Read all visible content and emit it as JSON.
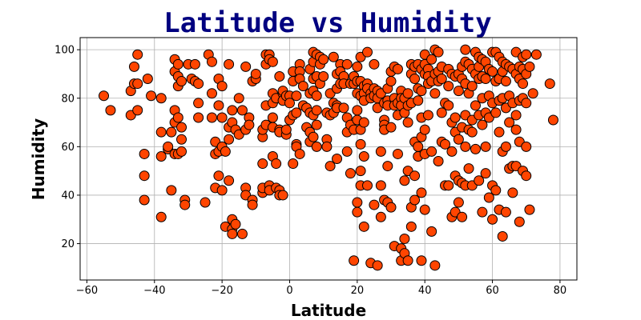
{
  "colors": {
    "title": "#000080",
    "marker_fill": "#ff4500",
    "marker_edge": "#000000",
    "grid": "#b0b0b0"
  },
  "chart_data": {
    "type": "scatter",
    "title": "Latitude vs Humidity",
    "xlabel": "Latitude",
    "ylabel": "Humidity",
    "xlim": [
      -62,
      85
    ],
    "ylim": [
      5,
      105
    ],
    "xticks": [
      -60,
      -40,
      -20,
      0,
      20,
      40,
      60,
      80
    ],
    "yticks": [
      20,
      40,
      60,
      80,
      100
    ],
    "xtick_labels": [
      "−60",
      "−40",
      "−20",
      "0",
      "20",
      "40",
      "60",
      "80"
    ],
    "ytick_labels": [
      "20",
      "40",
      "60",
      "80",
      "100"
    ],
    "grid": true,
    "points": [
      [
        -55,
        81
      ],
      [
        -53,
        75
      ],
      [
        -47,
        73
      ],
      [
        -47,
        83
      ],
      [
        -46,
        93
      ],
      [
        -46,
        86
      ],
      [
        -45,
        98
      ],
      [
        -45,
        86
      ],
      [
        -45,
        75
      ],
      [
        -42,
        88
      ],
      [
        -41,
        81
      ],
      [
        -43,
        57
      ],
      [
        -43,
        48
      ],
      [
        -43,
        38
      ],
      [
        -38,
        80
      ],
      [
        -38,
        66
      ],
      [
        -38,
        56
      ],
      [
        -38,
        31
      ],
      [
        -36,
        59
      ],
      [
        -36,
        60
      ],
      [
        -35,
        42
      ],
      [
        -35,
        66
      ],
      [
        -34,
        57
      ],
      [
        -34,
        96
      ],
      [
        -34,
        91
      ],
      [
        -34,
        75
      ],
      [
        -34,
        70
      ],
      [
        -33,
        94
      ],
      [
        -33,
        89
      ],
      [
        -33,
        85
      ],
      [
        -33,
        72
      ],
      [
        -33,
        57
      ],
      [
        -32,
        87
      ],
      [
        -32,
        63
      ],
      [
        -32,
        58
      ],
      [
        -32,
        68
      ],
      [
        -31,
        38
      ],
      [
        -31,
        36
      ],
      [
        -30,
        94
      ],
      [
        -29,
        88
      ],
      [
        -28,
        94
      ],
      [
        -28,
        87
      ],
      [
        -27,
        86
      ],
      [
        -27,
        72
      ],
      [
        -27,
        78
      ],
      [
        -25,
        37
      ],
      [
        -24,
        98
      ],
      [
        -23,
        82
      ],
      [
        -23,
        72
      ],
      [
        -23,
        95
      ],
      [
        -22,
        62
      ],
      [
        -22,
        57
      ],
      [
        -22,
        43
      ],
      [
        -21,
        88
      ],
      [
        -21,
        58
      ],
      [
        -21,
        48
      ],
      [
        -21,
        77
      ],
      [
        -20,
        85
      ],
      [
        -20,
        42
      ],
      [
        -20,
        72
      ],
      [
        -20,
        60
      ],
      [
        -19,
        58
      ],
      [
        -19,
        27
      ],
      [
        -18,
        94
      ],
      [
        -18,
        63
      ],
      [
        -18,
        46
      ],
      [
        -18,
        68
      ],
      [
        -17,
        75
      ],
      [
        -17,
        70
      ],
      [
        -17,
        26
      ],
      [
        -17,
        30
      ],
      [
        -17,
        24
      ],
      [
        -16,
        67
      ],
      [
        -16,
        28
      ],
      [
        -15,
        80
      ],
      [
        -15,
        65
      ],
      [
        -14,
        24
      ],
      [
        -14,
        75
      ],
      [
        -13,
        93
      ],
      [
        -13,
        43
      ],
      [
        -13,
        40
      ],
      [
        -13,
        67
      ],
      [
        -12,
        72
      ],
      [
        -12,
        69
      ],
      [
        -11,
        87
      ],
      [
        -11,
        38
      ],
      [
        -11,
        36
      ],
      [
        -10,
        88
      ],
      [
        -10,
        90
      ],
      [
        -8,
        53
      ],
      [
        -8,
        41
      ],
      [
        -8,
        43
      ],
      [
        -8,
        64
      ],
      [
        -8,
        67
      ],
      [
        -7,
        94
      ],
      [
        -7,
        98
      ],
      [
        -7,
        77
      ],
      [
        -7,
        69
      ],
      [
        -6,
        98
      ],
      [
        -6,
        96
      ],
      [
        -6,
        44
      ],
      [
        -6,
        42
      ],
      [
        -5,
        95
      ],
      [
        -5,
        72
      ],
      [
        -5,
        82
      ],
      [
        -5,
        78
      ],
      [
        -5,
        68
      ],
      [
        -5,
        56
      ],
      [
        -4,
        80
      ],
      [
        -4,
        53
      ],
      [
        -4,
        43
      ],
      [
        -3,
        89
      ],
      [
        -3,
        67
      ],
      [
        -3,
        66
      ],
      [
        -3,
        42
      ],
      [
        -3,
        40
      ],
      [
        -2,
        82
      ],
      [
        -2,
        83
      ],
      [
        -2,
        79
      ],
      [
        -2,
        40
      ],
      [
        -1,
        81
      ],
      [
        -1,
        65
      ],
      [
        -1,
        67
      ],
      [
        0,
        81
      ],
      [
        0,
        78
      ],
      [
        0,
        71
      ],
      [
        1,
        91
      ],
      [
        1,
        87
      ],
      [
        1,
        73
      ],
      [
        1,
        53
      ],
      [
        2,
        81
      ],
      [
        2,
        74
      ],
      [
        2,
        61
      ],
      [
        2,
        60
      ],
      [
        3,
        94
      ],
      [
        3,
        91
      ],
      [
        3,
        88
      ],
      [
        3,
        57
      ],
      [
        4,
        85
      ],
      [
        4,
        77
      ],
      [
        5,
        76
      ],
      [
        5,
        68
      ],
      [
        6,
        92
      ],
      [
        6,
        82
      ],
      [
        6,
        74
      ],
      [
        6,
        66
      ],
      [
        6,
        62
      ],
      [
        7,
        99
      ],
      [
        7,
        95
      ],
      [
        7,
        88
      ],
      [
        7,
        83
      ],
      [
        7,
        73
      ],
      [
        7,
        64
      ],
      [
        8,
        98
      ],
      [
        8,
        89
      ],
      [
        8,
        81
      ],
      [
        8,
        75
      ],
      [
        8,
        69
      ],
      [
        8,
        60
      ],
      [
        9,
        97
      ],
      [
        9,
        94
      ],
      [
        9,
        86
      ],
      [
        10,
        96
      ],
      [
        10,
        89
      ],
      [
        11,
        74
      ],
      [
        11,
        63
      ],
      [
        11,
        60
      ],
      [
        12,
        82
      ],
      [
        12,
        73
      ],
      [
        12,
        52
      ],
      [
        13,
        97
      ],
      [
        13,
        78
      ],
      [
        13,
        74
      ],
      [
        14,
        90
      ],
      [
        14,
        84
      ],
      [
        14,
        77
      ],
      [
        14,
        76
      ],
      [
        14,
        55
      ],
      [
        15,
        94
      ],
      [
        15,
        91
      ],
      [
        15,
        86
      ],
      [
        16,
        89
      ],
      [
        16,
        86
      ],
      [
        16,
        76
      ],
      [
        17,
        94
      ],
      [
        17,
        72
      ],
      [
        17,
        66
      ],
      [
        17,
        58
      ],
      [
        18,
        86
      ],
      [
        18,
        69
      ],
      [
        18,
        49
      ],
      [
        19,
        86
      ],
      [
        19,
        13
      ],
      [
        19,
        67
      ],
      [
        19,
        89
      ],
      [
        20,
        93
      ],
      [
        20,
        87
      ],
      [
        20,
        82
      ],
      [
        20,
        75
      ],
      [
        20,
        71
      ],
      [
        20,
        37
      ],
      [
        20,
        33
      ],
      [
        21,
        97
      ],
      [
        21,
        87
      ],
      [
        21,
        81
      ],
      [
        21,
        67
      ],
      [
        21,
        61
      ],
      [
        21,
        50
      ],
      [
        21,
        44
      ],
      [
        22,
        85
      ],
      [
        22,
        82
      ],
      [
        22,
        79
      ],
      [
        22,
        70
      ],
      [
        22,
        56
      ],
      [
        22,
        27
      ],
      [
        23,
        99
      ],
      [
        23,
        86
      ],
      [
        23,
        84
      ],
      [
        23,
        44
      ],
      [
        24,
        82
      ],
      [
        24,
        80
      ],
      [
        24,
        12
      ],
      [
        25,
        94
      ],
      [
        25,
        84
      ],
      [
        25,
        81
      ],
      [
        25,
        36
      ],
      [
        26,
        83
      ],
      [
        26,
        80
      ],
      [
        26,
        76
      ],
      [
        26,
        11
      ],
      [
        27,
        82
      ],
      [
        27,
        58
      ],
      [
        27,
        44
      ],
      [
        27,
        31
      ],
      [
        28,
        78
      ],
      [
        28,
        71
      ],
      [
        28,
        69
      ],
      [
        28,
        67
      ],
      [
        28,
        38
      ],
      [
        29,
        84
      ],
      [
        29,
        79
      ],
      [
        29,
        77
      ],
      [
        29,
        52
      ],
      [
        29,
        37
      ],
      [
        30,
        91
      ],
      [
        30,
        87
      ],
      [
        30,
        68
      ],
      [
        30,
        35
      ],
      [
        31,
        93
      ],
      [
        31,
        80
      ],
      [
        31,
        77
      ],
      [
        31,
        19
      ],
      [
        32,
        92
      ],
      [
        32,
        78
      ],
      [
        32,
        73
      ],
      [
        32,
        57
      ],
      [
        33,
        83
      ],
      [
        33,
        80
      ],
      [
        33,
        77
      ],
      [
        33,
        18
      ],
      [
        33,
        13
      ],
      [
        34,
        80
      ],
      [
        34,
        74
      ],
      [
        34,
        46
      ],
      [
        34,
        22
      ],
      [
        34,
        16
      ],
      [
        35,
        82
      ],
      [
        35,
        77
      ],
      [
        35,
        70
      ],
      [
        35,
        50
      ],
      [
        35,
        13
      ],
      [
        36,
        94
      ],
      [
        36,
        90
      ],
      [
        36,
        78
      ],
      [
        36,
        35
      ],
      [
        36,
        27
      ],
      [
        37,
        93
      ],
      [
        37,
        88
      ],
      [
        37,
        62
      ],
      [
        37,
        48
      ],
      [
        37,
        38
      ],
      [
        38,
        94
      ],
      [
        38,
        84
      ],
      [
        38,
        79
      ],
      [
        38,
        60
      ],
      [
        38,
        56
      ],
      [
        39,
        92
      ],
      [
        39,
        83
      ],
      [
        39,
        72
      ],
      [
        39,
        64
      ],
      [
        39,
        41
      ],
      [
        39,
        13
      ],
      [
        40,
        98
      ],
      [
        40,
        94
      ],
      [
        40,
        90
      ],
      [
        40,
        67
      ],
      [
        40,
        57
      ],
      [
        40,
        34
      ],
      [
        41,
        92
      ],
      [
        41,
        89
      ],
      [
        41,
        86
      ],
      [
        41,
        73
      ],
      [
        42,
        96
      ],
      [
        42,
        87
      ],
      [
        42,
        58
      ],
      [
        42,
        25
      ],
      [
        43,
        100
      ],
      [
        43,
        90
      ],
      [
        43,
        82
      ],
      [
        43,
        11
      ],
      [
        44,
        99
      ],
      [
        44,
        91
      ],
      [
        44,
        87
      ],
      [
        44,
        54
      ],
      [
        45,
        93
      ],
      [
        45,
        88
      ],
      [
        45,
        74
      ],
      [
        45,
        62
      ],
      [
        46,
        78
      ],
      [
        46,
        61
      ],
      [
        46,
        44
      ],
      [
        47,
        92
      ],
      [
        47,
        85
      ],
      [
        47,
        77
      ],
      [
        47,
        44
      ],
      [
        48,
        90
      ],
      [
        48,
        70
      ],
      [
        48,
        58
      ],
      [
        48,
        31
      ],
      [
        49,
        89
      ],
      [
        49,
        72
      ],
      [
        49,
        66
      ],
      [
        49,
        48
      ],
      [
        49,
        33
      ],
      [
        50,
        90
      ],
      [
        50,
        83
      ],
      [
        50,
        63
      ],
      [
        50,
        46
      ],
      [
        50,
        37
      ],
      [
        51,
        93
      ],
      [
        51,
        88
      ],
      [
        51,
        68
      ],
      [
        51,
        45
      ],
      [
        51,
        31
      ],
      [
        52,
        100
      ],
      [
        52,
        95
      ],
      [
        52,
        86
      ],
      [
        52,
        73
      ],
      [
        52,
        60
      ],
      [
        52,
        44
      ],
      [
        53,
        94
      ],
      [
        53,
        82
      ],
      [
        53,
        67
      ],
      [
        53,
        51
      ],
      [
        54,
        92
      ],
      [
        54,
        85
      ],
      [
        54,
        71
      ],
      [
        54,
        66
      ],
      [
        54,
        44
      ],
      [
        55,
        99
      ],
      [
        55,
        90
      ],
      [
        55,
        77
      ],
      [
        55,
        59
      ],
      [
        56,
        97
      ],
      [
        56,
        93
      ],
      [
        56,
        88
      ],
      [
        56,
        73
      ],
      [
        56,
        46
      ],
      [
        57,
        96
      ],
      [
        57,
        89
      ],
      [
        57,
        80
      ],
      [
        57,
        69
      ],
      [
        57,
        33
      ],
      [
        58,
        95
      ],
      [
        58,
        88
      ],
      [
        58,
        74
      ],
      [
        58,
        60
      ],
      [
        58,
        49
      ],
      [
        59,
        92
      ],
      [
        59,
        81
      ],
      [
        59,
        72
      ],
      [
        59,
        39
      ],
      [
        60,
        99
      ],
      [
        60,
        91
      ],
      [
        60,
        78
      ],
      [
        60,
        44
      ],
      [
        60,
        30
      ],
      [
        61,
        99
      ],
      [
        61,
        87
      ],
      [
        61,
        74
      ],
      [
        61,
        42
      ],
      [
        62,
        97
      ],
      [
        62,
        88
      ],
      [
        62,
        79
      ],
      [
        62,
        66
      ],
      [
        62,
        34
      ],
      [
        63,
        95
      ],
      [
        63,
        91
      ],
      [
        63,
        80
      ],
      [
        63,
        58
      ],
      [
        63,
        23
      ],
      [
        64,
        94
      ],
      [
        64,
        87
      ],
      [
        64,
        76
      ],
      [
        64,
        60
      ],
      [
        64,
        33
      ],
      [
        65,
        93
      ],
      [
        65,
        81
      ],
      [
        65,
        70
      ],
      [
        65,
        51
      ],
      [
        66,
        92
      ],
      [
        66,
        78
      ],
      [
        66,
        52
      ],
      [
        66,
        41
      ],
      [
        67,
        99
      ],
      [
        67,
        90
      ],
      [
        67,
        73
      ],
      [
        67,
        67
      ],
      [
        67,
        52
      ],
      [
        68,
        93
      ],
      [
        68,
        88
      ],
      [
        68,
        79
      ],
      [
        68,
        62
      ],
      [
        68,
        29
      ],
      [
        69,
        97
      ],
      [
        69,
        92
      ],
      [
        69,
        86
      ],
      [
        69,
        80
      ],
      [
        69,
        50
      ],
      [
        70,
        98
      ],
      [
        70,
        90
      ],
      [
        70,
        78
      ],
      [
        70,
        60
      ],
      [
        70,
        48
      ],
      [
        71,
        93
      ],
      [
        71,
        34
      ],
      [
        72,
        82
      ],
      [
        73,
        98
      ],
      [
        77,
        86
      ],
      [
        78,
        71
      ]
    ]
  }
}
